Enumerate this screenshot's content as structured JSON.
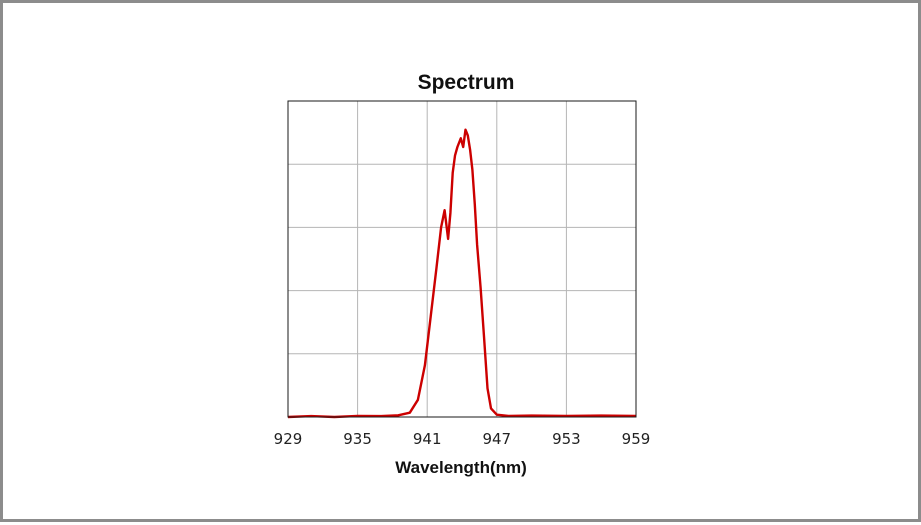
{
  "chart_data": {
    "type": "line",
    "title": "Spectrum",
    "xlabel": "Wavelength(nm)",
    "ylabel": "",
    "xlim": [
      929,
      959
    ],
    "ylim": [
      0,
      1.1
    ],
    "x_ticks": [
      "929",
      "935",
      "941",
      "947",
      "953",
      "959"
    ],
    "grid": true,
    "y_tick_labels_shown": false,
    "series": [
      {
        "color": "#cc0000",
        "x": [
          929,
          931,
          933,
          935,
          937,
          938.5,
          939.5,
          940.2,
          940.8,
          941.3,
          941.8,
          942.2,
          942.5,
          942.8,
          943.0,
          943.2,
          943.4,
          943.6,
          943.9,
          944.1,
          944.3,
          944.5,
          944.7,
          944.9,
          945.1,
          945.3,
          945.6,
          945.9,
          946.2,
          946.5,
          947.0,
          948,
          950,
          953,
          956,
          959
        ],
        "y": [
          0.0,
          0.003,
          0.0,
          0.004,
          0.003,
          0.006,
          0.015,
          0.06,
          0.18,
          0.35,
          0.52,
          0.66,
          0.72,
          0.62,
          0.71,
          0.85,
          0.91,
          0.94,
          0.97,
          0.94,
          1.0,
          0.98,
          0.93,
          0.86,
          0.74,
          0.6,
          0.45,
          0.28,
          0.1,
          0.03,
          0.008,
          0.004,
          0.005,
          0.004,
          0.005,
          0.004
        ]
      }
    ]
  }
}
